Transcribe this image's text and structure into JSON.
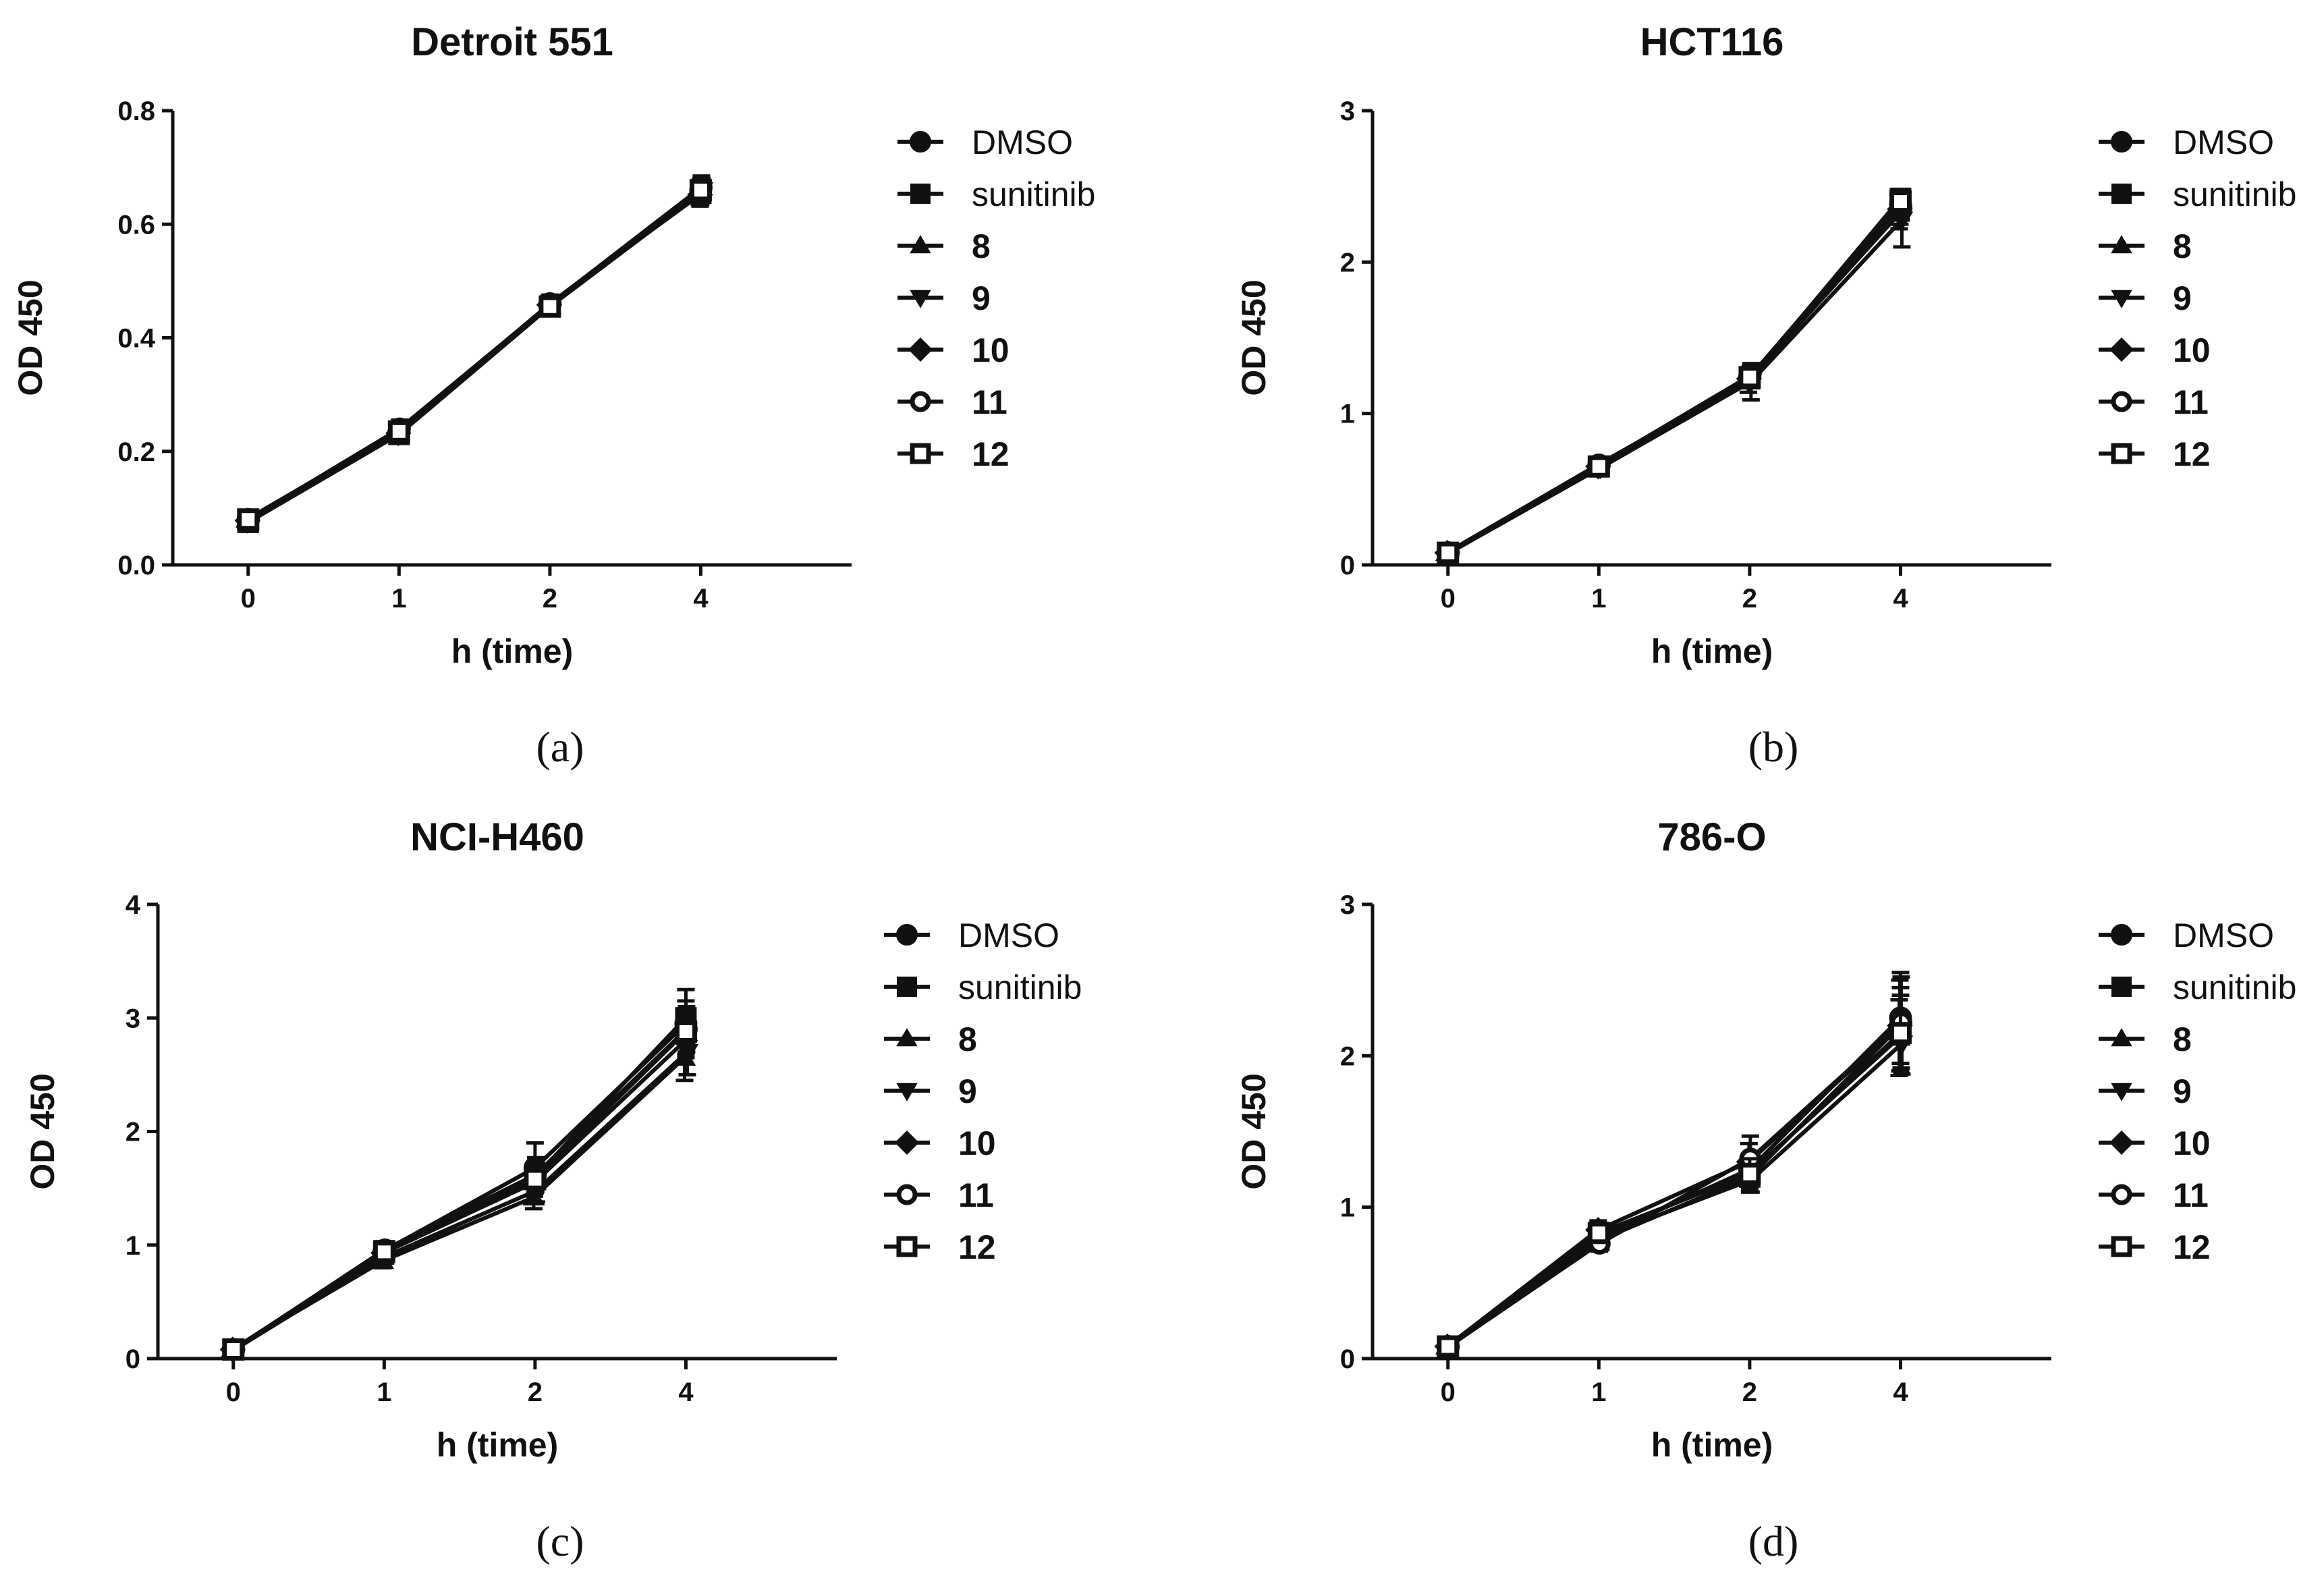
{
  "figure": {
    "panels": [
      "(a)",
      "(b)",
      "(c)",
      "(d)"
    ]
  },
  "legend": {
    "entries": [
      {
        "label": "DMSO",
        "marker": "circle-filled"
      },
      {
        "label": "sunitinib",
        "marker": "square-filled"
      },
      {
        "label": "8",
        "marker": "triangle-up-filled"
      },
      {
        "label": "9",
        "marker": "triangle-down-filled"
      },
      {
        "label": "10",
        "marker": "diamond-filled"
      },
      {
        "label": "11",
        "marker": "circle-open"
      },
      {
        "label": "12",
        "marker": "square-open"
      }
    ]
  },
  "chart_data": [
    {
      "type": "line",
      "title": "Detroit 551",
      "panel": "(a)",
      "xlabel": "h (time)",
      "ylabel": "OD 450",
      "categories": [
        "0",
        "1",
        "2",
        "4"
      ],
      "ylim": [
        0,
        0.8
      ],
      "yticks": [
        "0.0",
        "0.2",
        "0.4",
        "0.6",
        "0.8"
      ],
      "series": [
        {
          "name": "DMSO",
          "values": [
            0.08,
            0.235,
            0.46,
            0.66
          ],
          "err": [
            0.01,
            0.015,
            0.015,
            0.02
          ]
        },
        {
          "name": "sunitinib",
          "values": [
            0.075,
            0.23,
            0.455,
            0.655
          ],
          "err": [
            0.01,
            0.015,
            0.015,
            0.02
          ]
        },
        {
          "name": "8",
          "values": [
            0.08,
            0.235,
            0.455,
            0.655
          ],
          "err": [
            0.01,
            0.015,
            0.015,
            0.02
          ]
        },
        {
          "name": "9",
          "values": [
            0.08,
            0.235,
            0.46,
            0.66
          ],
          "err": [
            0.01,
            0.015,
            0.015,
            0.02
          ]
        },
        {
          "name": "10",
          "values": [
            0.078,
            0.232,
            0.458,
            0.652
          ],
          "err": [
            0.01,
            0.015,
            0.015,
            0.02
          ]
        },
        {
          "name": "11",
          "values": [
            0.08,
            0.24,
            0.46,
            0.665
          ],
          "err": [
            0.01,
            0.015,
            0.015,
            0.02
          ]
        },
        {
          "name": "12",
          "values": [
            0.08,
            0.235,
            0.455,
            0.66
          ],
          "err": [
            0.01,
            0.015,
            0.015,
            0.02
          ]
        }
      ]
    },
    {
      "type": "line",
      "title": "HCT116",
      "panel": "(b)",
      "xlabel": "h (time)",
      "ylabel": "OD 450",
      "categories": [
        "0",
        "1",
        "2",
        "4"
      ],
      "ylim": [
        0,
        3
      ],
      "yticks": [
        "0",
        "1",
        "2",
        "3"
      ],
      "series": [
        {
          "name": "DMSO",
          "values": [
            0.08,
            0.66,
            1.24,
            2.38
          ],
          "err": [
            0.02,
            0.04,
            0.06,
            0.08
          ]
        },
        {
          "name": "sunitinib",
          "values": [
            0.08,
            0.65,
            1.23,
            2.42
          ],
          "err": [
            0.02,
            0.04,
            0.06,
            0.06
          ]
        },
        {
          "name": "8",
          "values": [
            0.08,
            0.66,
            1.22,
            2.32
          ],
          "err": [
            0.02,
            0.04,
            0.08,
            0.1
          ]
        },
        {
          "name": "9",
          "values": [
            0.08,
            0.64,
            1.21,
            2.28
          ],
          "err": [
            0.02,
            0.04,
            0.12,
            0.18
          ]
        },
        {
          "name": "10",
          "values": [
            0.08,
            0.65,
            1.23,
            2.35
          ],
          "err": [
            0.02,
            0.04,
            0.06,
            0.1
          ]
        },
        {
          "name": "11",
          "values": [
            0.08,
            0.66,
            1.25,
            2.36
          ],
          "err": [
            0.02,
            0.04,
            0.06,
            0.08
          ]
        },
        {
          "name": "12",
          "values": [
            0.08,
            0.65,
            1.24,
            2.4
          ],
          "err": [
            0.02,
            0.04,
            0.06,
            0.08
          ]
        }
      ]
    },
    {
      "type": "line",
      "title": "NCI-H460",
      "panel": "(c)",
      "xlabel": "h (time)",
      "ylabel": "OD 450",
      "categories": [
        "0",
        "1",
        "2",
        "4"
      ],
      "ylim": [
        0,
        4
      ],
      "yticks": [
        "0",
        "1",
        "2",
        "3",
        "4"
      ],
      "series": [
        {
          "name": "DMSO",
          "values": [
            0.08,
            0.95,
            1.68,
            2.95
          ],
          "err": [
            0.02,
            0.06,
            0.22,
            0.3
          ]
        },
        {
          "name": "sunitinib",
          "values": [
            0.08,
            0.95,
            1.6,
            3.0
          ],
          "err": [
            0.02,
            0.06,
            0.1,
            0.15
          ]
        },
        {
          "name": "8",
          "values": [
            0.08,
            0.86,
            1.42,
            2.65
          ],
          "err": [
            0.02,
            0.06,
            0.1,
            0.2
          ]
        },
        {
          "name": "9",
          "values": [
            0.08,
            0.9,
            1.48,
            2.7
          ],
          "err": [
            0.02,
            0.06,
            0.1,
            0.2
          ]
        },
        {
          "name": "10",
          "values": [
            0.08,
            0.93,
            1.55,
            2.8
          ],
          "err": [
            0.02,
            0.06,
            0.12,
            0.2
          ]
        },
        {
          "name": "11",
          "values": [
            0.08,
            0.96,
            1.62,
            2.9
          ],
          "err": [
            0.02,
            0.06,
            0.15,
            0.2
          ]
        },
        {
          "name": "12",
          "values": [
            0.08,
            0.94,
            1.58,
            2.88
          ],
          "err": [
            0.02,
            0.06,
            0.12,
            0.2
          ]
        }
      ]
    },
    {
      "type": "line",
      "title": "786-O",
      "panel": "(d)",
      "xlabel": "h (time)",
      "ylabel": "OD 450",
      "categories": [
        "0",
        "1",
        "2",
        "4"
      ],
      "ylim": [
        0,
        3
      ],
      "yticks": [
        "0",
        "1",
        "2",
        "3"
      ],
      "series": [
        {
          "name": "DMSO",
          "values": [
            0.08,
            0.8,
            1.25,
            2.25
          ],
          "err": [
            0.02,
            0.06,
            0.08,
            0.3
          ]
        },
        {
          "name": "sunitinib",
          "values": [
            0.08,
            0.78,
            1.2,
            2.2
          ],
          "err": [
            0.02,
            0.05,
            0.1,
            0.25
          ]
        },
        {
          "name": "8",
          "values": [
            0.08,
            0.82,
            1.22,
            2.12
          ],
          "err": [
            0.02,
            0.06,
            0.08,
            0.25
          ]
        },
        {
          "name": "9",
          "values": [
            0.08,
            0.8,
            1.18,
            2.08
          ],
          "err": [
            0.02,
            0.06,
            0.08,
            0.2
          ]
        },
        {
          "name": "10",
          "values": [
            0.08,
            0.85,
            1.3,
            2.2
          ],
          "err": [
            0.02,
            0.06,
            0.12,
            0.3
          ]
        },
        {
          "name": "11",
          "values": [
            0.08,
            0.76,
            1.32,
            2.22
          ],
          "err": [
            0.02,
            0.05,
            0.15,
            0.3
          ]
        },
        {
          "name": "12",
          "values": [
            0.08,
            0.83,
            1.22,
            2.15
          ],
          "err": [
            0.02,
            0.06,
            0.1,
            0.25
          ]
        }
      ]
    }
  ]
}
